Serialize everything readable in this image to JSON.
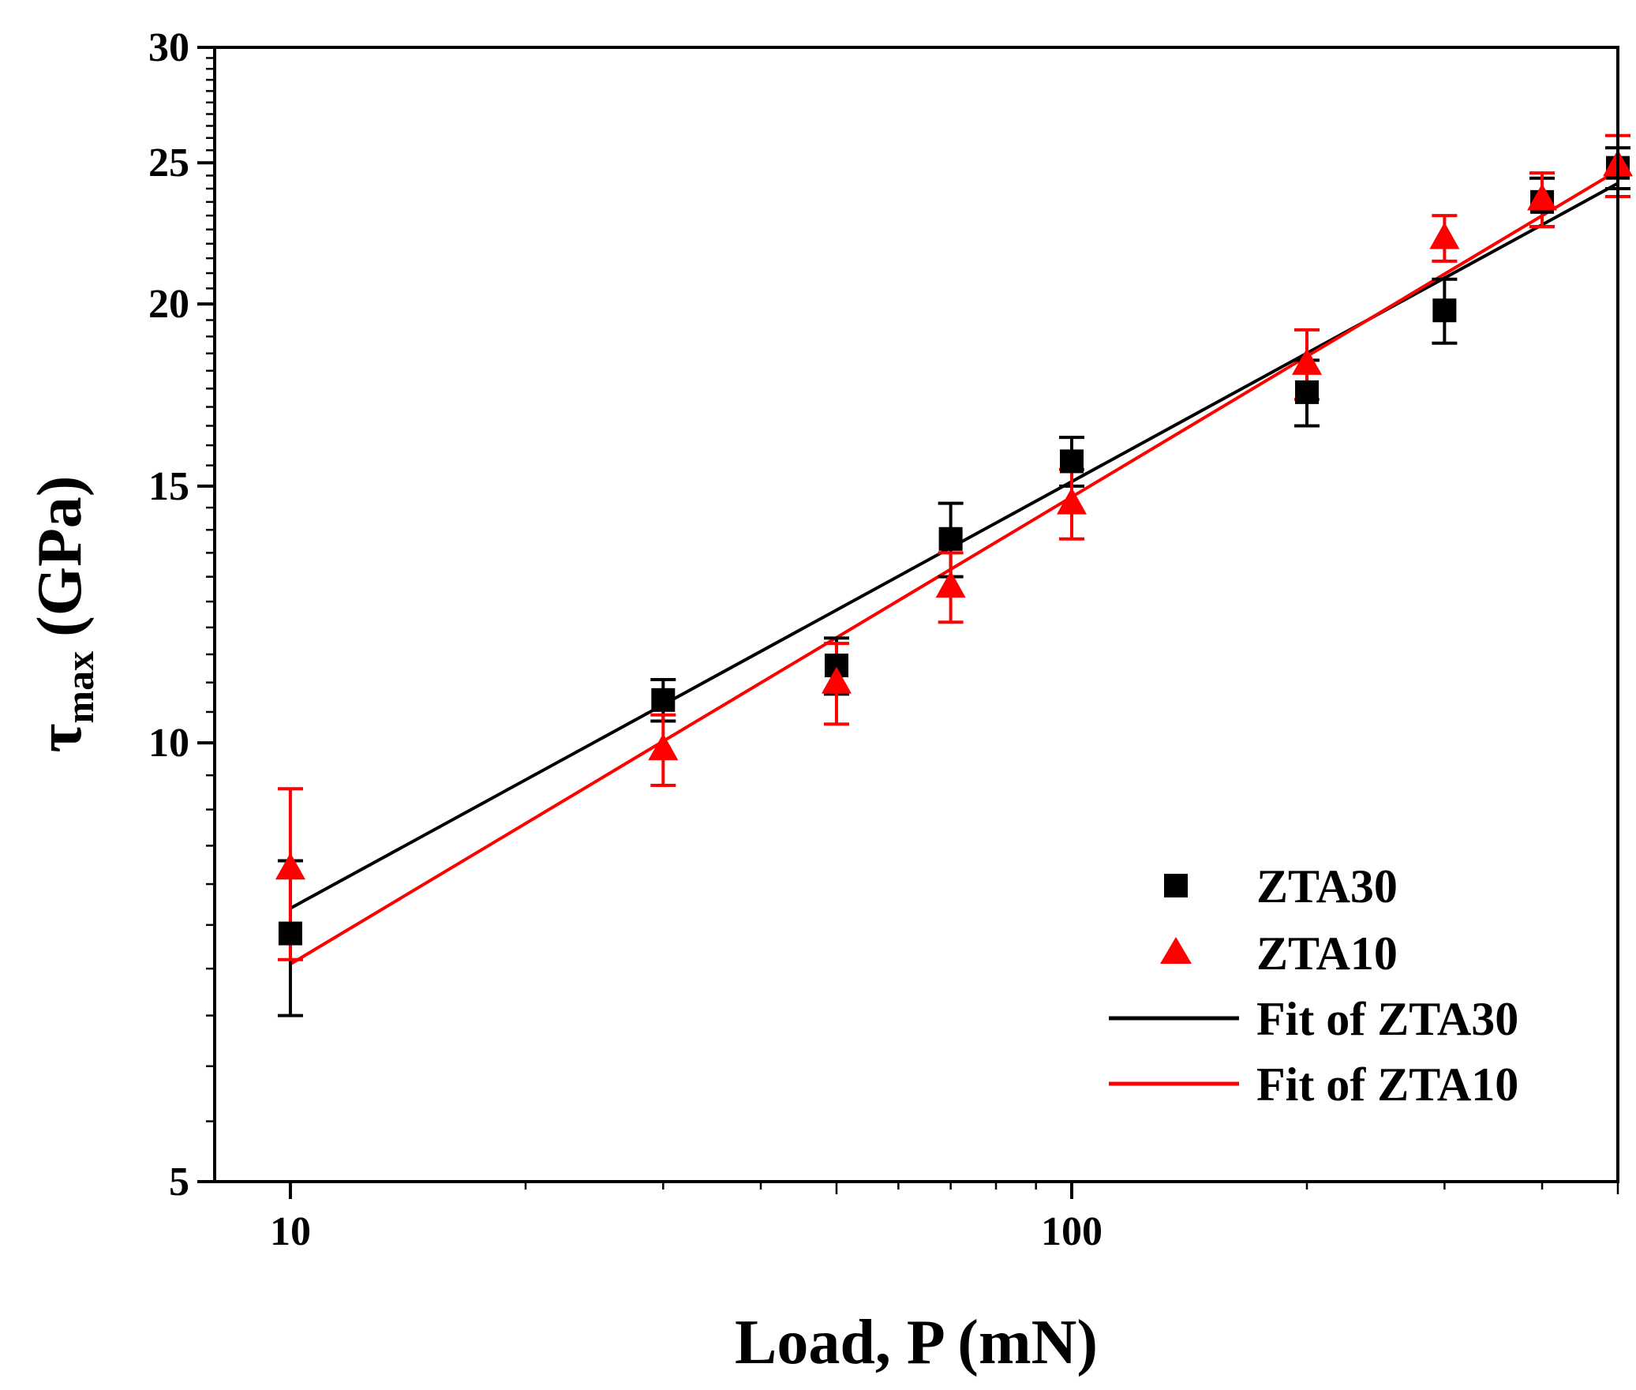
{
  "chart_data": {
    "type": "scatter",
    "title": "",
    "xlabel": "Load, P (mN)",
    "ylabel_main": "τ",
    "ylabel_sub": "max",
    "ylabel_unit": "(GPa)",
    "x_scale": "log",
    "y_scale": "log",
    "xlim": [
      8,
      500
    ],
    "ylim": [
      5,
      30
    ],
    "x_ticks": [
      {
        "value": 10,
        "label": "10"
      },
      {
        "value": 100,
        "label": "100"
      }
    ],
    "y_ticks": [
      {
        "value": 5,
        "label": "5"
      },
      {
        "value": 10,
        "label": "10"
      },
      {
        "value": 15,
        "label": "15"
      },
      {
        "value": 20,
        "label": "20"
      },
      {
        "value": 25,
        "label": "25"
      },
      {
        "value": 30,
        "label": "30"
      }
    ],
    "legend_position": "bottom-right",
    "series": [
      {
        "name": "ZTA30",
        "marker": "square",
        "color": "#000000",
        "x": [
          10,
          30,
          50,
          70,
          100,
          200,
          300,
          400,
          500
        ],
        "y": [
          7.4,
          10.7,
          11.3,
          13.8,
          15.6,
          17.4,
          19.8,
          23.5,
          24.8
        ],
        "err": [
          0.9,
          0.35,
          0.5,
          0.8,
          0.6,
          0.9,
          1.0,
          0.9,
          0.8
        ]
      },
      {
        "name": "ZTA10",
        "marker": "triangle",
        "color": "#ff0000",
        "x": [
          10,
          30,
          50,
          70,
          100,
          200,
          300,
          400,
          500
        ],
        "y": [
          8.2,
          9.9,
          11.0,
          12.8,
          14.6,
          18.2,
          22.2,
          23.6,
          24.9
        ],
        "err": [
          1.1,
          0.55,
          0.7,
          0.7,
          0.8,
          1.0,
          0.8,
          1.0,
          1.2
        ]
      }
    ],
    "fits": [
      {
        "name": "Fit of ZTA30",
        "color": "#000000",
        "x": [
          10,
          500
        ],
        "y": [
          7.7,
          24.2
        ]
      },
      {
        "name": "Fit of ZTA10",
        "color": "#ff0000",
        "x": [
          10,
          500
        ],
        "y": [
          7.05,
          24.7
        ]
      }
    ]
  }
}
